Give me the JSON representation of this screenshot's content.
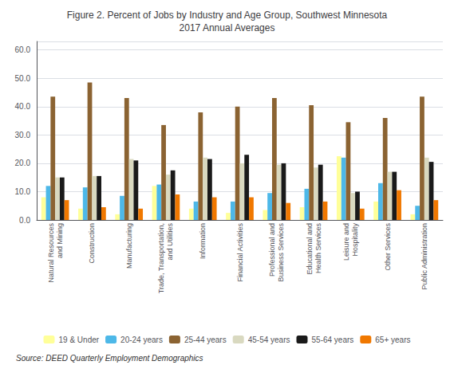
{
  "chart_data": {
    "type": "bar",
    "title": "Figure 2. Percent of Jobs by Industry and Age Group, Southwest Minnesota\n2017 Annual Averages",
    "categories": [
      "Natural Resources\nand Mining",
      "Construction",
      "Manufacturing",
      "Trade, Transportation,\nand Utilities",
      "Information",
      "Financial Activities",
      "Professional and\nBusiness Services",
      "Educational and\nHealth Services",
      "Leisure and\nHospitality",
      "Other Services",
      "Public Administration"
    ],
    "series": [
      {
        "name": "19 & Under",
        "color": "#ffff99",
        "values": [
          8.0,
          4.0,
          2.0,
          12.0,
          4.0,
          2.5,
          3.5,
          4.5,
          22.5,
          6.5,
          2.0
        ]
      },
      {
        "name": "20-24 years",
        "color": "#4db8e8",
        "values": [
          12.0,
          11.5,
          8.5,
          12.5,
          6.5,
          6.5,
          9.5,
          11.0,
          22.0,
          13.0,
          5.0
        ]
      },
      {
        "name": "25-44 years",
        "color": "#8B6332",
        "values": [
          43.5,
          48.5,
          43.0,
          33.5,
          38.0,
          40.0,
          43.0,
          40.5,
          34.5,
          36.0,
          43.5
        ]
      },
      {
        "name": "45-54 years",
        "color": "#d9d9c0",
        "values": [
          15.0,
          15.5,
          21.5,
          16.0,
          22.0,
          20.0,
          19.5,
          18.5,
          9.5,
          17.0,
          22.0
        ]
      },
      {
        "name": "55-64 years",
        "color": "#1a1a1a",
        "values": [
          15.0,
          15.5,
          21.0,
          17.5,
          21.5,
          23.0,
          20.0,
          19.5,
          10.0,
          17.0,
          20.5
        ]
      },
      {
        "name": "65+ years",
        "color": "#f07800",
        "values": [
          7.0,
          4.5,
          4.0,
          9.0,
          8.0,
          8.0,
          6.0,
          6.5,
          4.0,
          10.5,
          7.0
        ]
      }
    ],
    "ylim": [
      0,
      63
    ],
    "yticks": [
      {
        "value": 0,
        "label": "0.0"
      },
      {
        "value": 10,
        "label": "10.0"
      },
      {
        "value": 20,
        "label": "20.0"
      },
      {
        "value": 30,
        "label": "30.0"
      },
      {
        "value": 40,
        "label": "40.0"
      },
      {
        "value": 50,
        "label": "50.0"
      },
      {
        "value": 60,
        "label": "60.0"
      }
    ],
    "grid": true,
    "legend": "bottom",
    "annotations": [
      "Source: DEED Quarterly Employment Demographics"
    ]
  }
}
